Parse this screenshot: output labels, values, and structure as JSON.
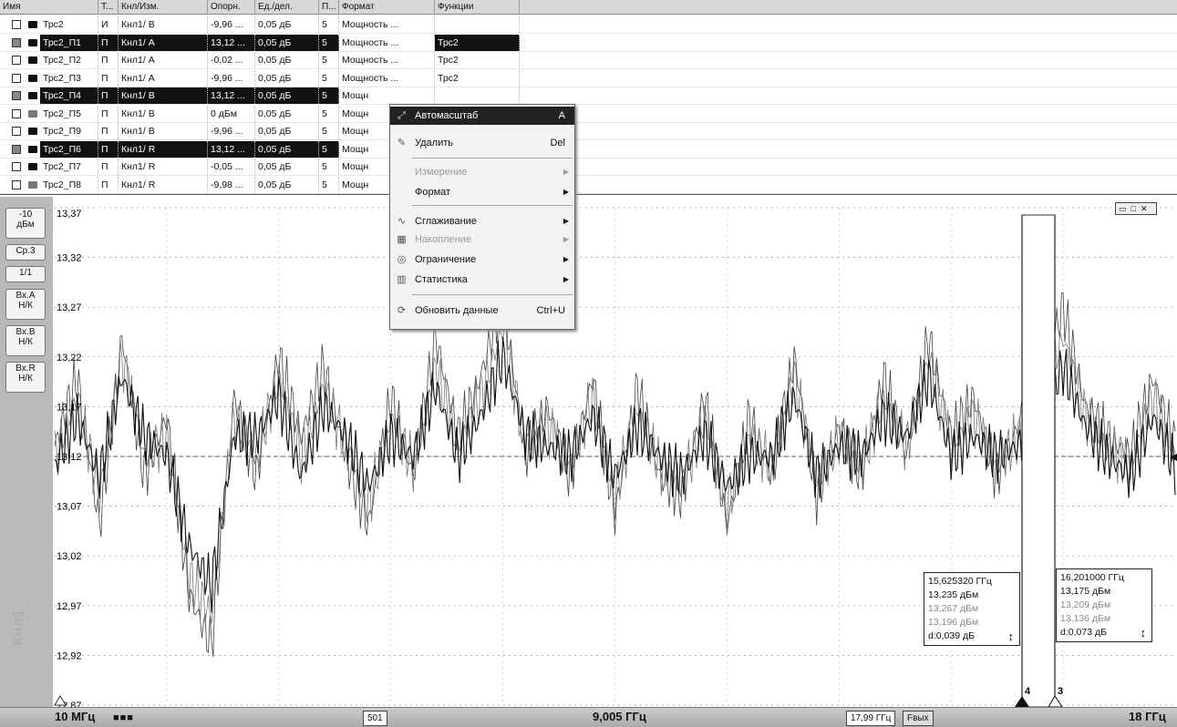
{
  "table": {
    "headers": [
      "Имя",
      "Т...",
      "Кнл/Изм.",
      "Опорн.",
      "Ед./дел.",
      "П...",
      "Формат",
      "Функции"
    ],
    "rows": [
      {
        "name": "Трс2",
        "type": "И",
        "channel": "Кнл1/ B",
        "ref": "-9,96 ...",
        "scale": "0,05 дБ",
        "p": "5",
        "format": "Мощность ...",
        "func": "",
        "selected": false
      },
      {
        "name": "Трс2_П1",
        "type": "П",
        "channel": "Кнл1/ A",
        "ref": "13,12 ...",
        "scale": "0,05 дБ",
        "p": "5",
        "format": "Мощность ...",
        "func": "Трс2",
        "selected": true
      },
      {
        "name": "Трс2_П2",
        "type": "П",
        "channel": "Кнл1/ A",
        "ref": "-0,02 ...",
        "scale": "0,05 дБ",
        "p": "5",
        "format": "Мощность ...",
        "func": "Трс2",
        "selected": false
      },
      {
        "name": "Трс2_П3",
        "type": "П",
        "channel": "Кнл1/ A",
        "ref": "-9,96 ...",
        "scale": "0,05 дБ",
        "p": "5",
        "format": "Мощность ...",
        "func": "Трс2",
        "selected": false
      },
      {
        "name": "Трс2_П4",
        "type": "П",
        "channel": "Кнл1/ B",
        "ref": "13,12 ...",
        "scale": "0,05 дБ",
        "p": "5",
        "format": "Мощн",
        "func": "",
        "selected": true
      },
      {
        "name": "Трс2_П5",
        "type": "П",
        "channel": "Кнл1/ B",
        "ref": "0 дБм",
        "scale": "0,05 дБ",
        "p": "5",
        "format": "Мощн",
        "func": "",
        "selected": false
      },
      {
        "name": "Трс2_П9",
        "type": "П",
        "channel": "Кнл1/ B",
        "ref": "-9,96 ...",
        "scale": "0,05 дБ",
        "p": "5",
        "format": "Мощн",
        "func": "",
        "selected": false
      },
      {
        "name": "Трс2_П6",
        "type": "П",
        "channel": "Кнл1/ R",
        "ref": "13,12 ...",
        "scale": "0,05 дБ",
        "p": "5",
        "format": "Мощн",
        "func": "",
        "selected": true
      },
      {
        "name": "Трс2_П7",
        "type": "П",
        "channel": "Кнл1/ R",
        "ref": "-0,05 ...",
        "scale": "0,05 дБ",
        "p": "5",
        "format": "Мощн",
        "func": "",
        "selected": false
      },
      {
        "name": "Трс2_П8",
        "type": "П",
        "channel": "Кнл1/ R",
        "ref": "-9,98 ...",
        "scale": "0,05 дБ",
        "p": "5",
        "format": "Мощн",
        "func": "",
        "selected": false
      }
    ]
  },
  "left_buttons": [
    {
      "line1": "-10",
      "line2": "дБм"
    },
    {
      "line1": "Ср.3",
      "line2": ""
    },
    {
      "line1": "1/1",
      "line2": ""
    },
    {
      "line1": "Вх.А",
      "line2": "Н/К"
    },
    {
      "line1": "Вх.В",
      "line2": "Н/К"
    },
    {
      "line1": "Вх.R",
      "line2": "Н/К"
    }
  ],
  "channel_label": "Кнл1",
  "context_menu": {
    "items": [
      {
        "label": "Автомасштаб",
        "shortcut": "A",
        "icon": "autoscale-icon",
        "state": "highlighted"
      },
      {
        "label": "Удалить",
        "shortcut": "Del",
        "icon": "delete-icon",
        "state": "normal"
      },
      {
        "label": "Измерение",
        "submenu": true,
        "state": "disabled"
      },
      {
        "label": "Формат",
        "submenu": true,
        "state": "normal"
      },
      {
        "label": "Сглаживание",
        "submenu": true,
        "icon": "smoothing-icon",
        "state": "normal"
      },
      {
        "label": "Накопление",
        "submenu": true,
        "icon": "accumulation-icon",
        "state": "disabled"
      },
      {
        "label": "Ограничение",
        "submenu": true,
        "icon": "limit-icon",
        "state": "normal"
      },
      {
        "label": "Статистика",
        "submenu": true,
        "icon": "statistics-icon",
        "state": "normal"
      },
      {
        "label": "Обновить данные",
        "shortcut": "Ctrl+U",
        "icon": "refresh-icon",
        "state": "normal"
      }
    ]
  },
  "bottom_bar": {
    "start": "10 МГц",
    "points": "501",
    "center": "9,005 ГГц",
    "value_box": "17,99 ГГц",
    "param": "Fвых",
    "stop": "18 ГГц"
  },
  "markers": [
    {
      "id": "4",
      "freq": "15,625320 ГГц",
      "v1": "13,235 дБм",
      "v2": "13,267 дБм",
      "v3": "13,196 дБм",
      "delta": "d:0,039 дБ"
    },
    {
      "id": "3",
      "freq": "16,201000 ГГц",
      "v1": "13,175 дБм",
      "v2": "13,209 дБм",
      "v3": "13,136 дБм",
      "delta": "d:0,073 дБ"
    }
  ],
  "chart_data": {
    "type": "line",
    "y_ticks": [
      "13,37",
      "13,32",
      "13,27",
      "13,22",
      "13,17",
      "13,12",
      "13,07",
      "13,02",
      "12,97",
      "12,92",
      "12,87"
    ],
    "ylim": [
      12.87,
      13.37
    ],
    "xlim_ghz": [
      0.01,
      18.0
    ],
    "reference_level": 13.12,
    "series": [
      {
        "values": [
          13.13,
          13.2,
          13.05,
          13.24,
          13.1,
          13.16,
          12.98,
          12.93,
          13.18,
          13.1,
          13.22,
          13.14,
          13.21,
          13.12,
          13.05,
          13.18,
          13.1,
          13.24,
          13.14,
          13.2,
          13.28,
          13.12,
          13.17,
          13.1,
          13.2,
          13.06,
          13.19,
          13.1,
          13.08,
          13.18,
          13.05,
          13.16,
          13.1,
          13.22,
          13.08,
          13.15,
          13.1,
          13.2,
          13.12,
          13.24,
          13.14,
          13.18,
          13.1,
          13.15,
          13.2,
          13.27,
          13.17,
          13.14,
          13.12,
          13.2,
          13.13
        ]
      },
      {
        "values": [
          13.12,
          13.18,
          13.08,
          13.22,
          13.12,
          13.14,
          13.0,
          12.96,
          13.16,
          13.12,
          13.2,
          13.12,
          13.19,
          13.13,
          13.07,
          13.16,
          13.11,
          13.21,
          13.13,
          13.18,
          13.25,
          13.13,
          13.15,
          13.11,
          13.18,
          13.08,
          13.17,
          13.11,
          13.09,
          13.16,
          13.07,
          13.14,
          13.11,
          13.2,
          13.09,
          13.14,
          13.11,
          13.18,
          13.13,
          13.22,
          13.13,
          13.16,
          13.11,
          13.14,
          13.18,
          13.24,
          13.16,
          13.13,
          13.11,
          13.18,
          13.12
        ]
      },
      {
        "values": [
          13.11,
          13.16,
          13.1,
          13.2,
          13.14,
          13.12,
          13.03,
          12.99,
          13.14,
          13.14,
          13.18,
          13.1,
          13.17,
          13.14,
          13.09,
          13.14,
          13.12,
          13.19,
          13.12,
          13.16,
          13.22,
          13.14,
          13.13,
          13.12,
          13.16,
          13.1,
          13.15,
          13.12,
          13.1,
          13.14,
          13.09,
          13.12,
          13.12,
          13.18,
          13.1,
          13.13,
          13.12,
          13.16,
          13.14,
          13.2,
          13.12,
          13.14,
          13.12,
          13.13,
          13.16,
          13.21,
          13.15,
          13.12,
          13.1,
          13.16,
          13.11
        ]
      }
    ]
  }
}
